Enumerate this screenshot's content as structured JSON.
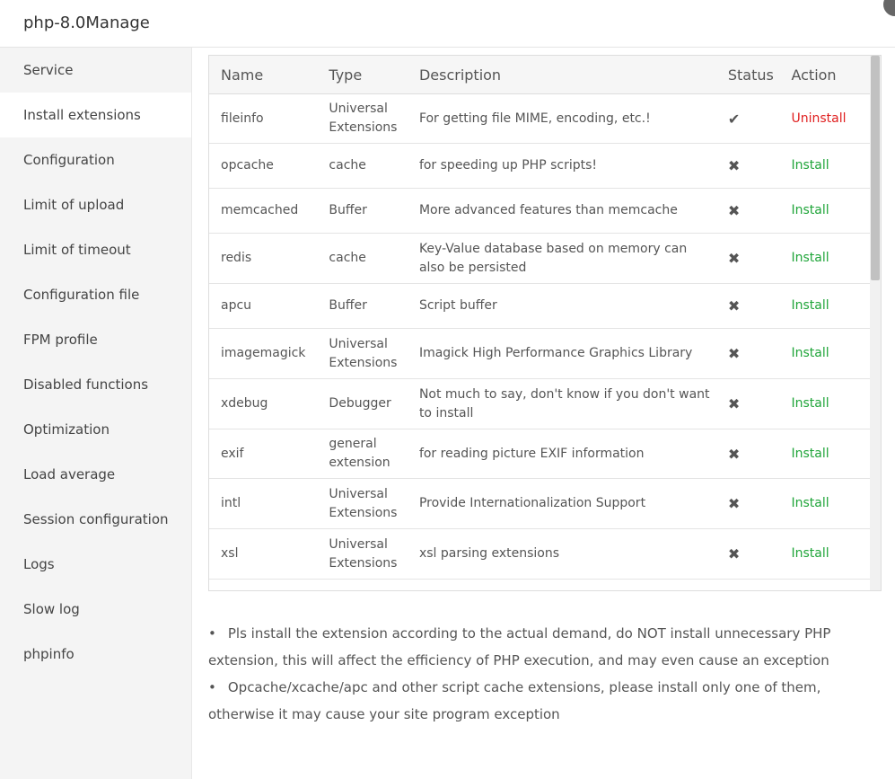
{
  "header": {
    "title": "php-8.0Manage"
  },
  "sidebar": {
    "items": [
      "Service",
      "Install extensions",
      "Configuration",
      "Limit of upload",
      "Limit of timeout",
      "Configuration file",
      "FPM profile",
      "Disabled functions",
      "Optimization",
      "Load average",
      "Session configuration",
      "Logs",
      "Slow log",
      "phpinfo"
    ],
    "selected": 1
  },
  "table": {
    "columns": [
      "Name",
      "Type",
      "Description",
      "Status",
      "Action"
    ],
    "rows": [
      [
        "fileinfo",
        "Universal Extensions",
        "For getting file MIME, encoding, etc.!",
        "✔",
        "Uninstall"
      ],
      [
        "opcache",
        "cache",
        "for speeding up PHP scripts!",
        "✖",
        "Install"
      ],
      [
        "memcached",
        "Buffer",
        "More advanced features than memcache",
        "✖",
        "Install"
      ],
      [
        "redis",
        "cache",
        "Key-Value database based on memory can also be persisted",
        "✖",
        "Install"
      ],
      [
        "apcu",
        "Buffer",
        "Script buffer",
        "✖",
        "Install"
      ],
      [
        "imagemagick",
        "Universal Extensions",
        "Imagick High Performance Graphics Library",
        "✖",
        "Install"
      ],
      [
        "xdebug",
        "Debugger",
        "Not much to say, don't know if you don't want to install",
        "✖",
        "Install"
      ],
      [
        "exif",
        "general extension",
        "for reading picture EXIF information",
        "✖",
        "Install"
      ],
      [
        "intl",
        "Universal Extensions",
        "Provide Internationalization Support",
        "✖",
        "Install"
      ],
      [
        "xsl",
        "Universal Extensions",
        "xsl parsing extensions",
        "✖",
        "Install"
      ]
    ]
  },
  "notes": [
    "Pls install the extension according to the actual demand, do NOT install unnecessary PHP extension, this will affect the efficiency of PHP execution, and may even cause an exception",
    "Opcache/xcache/apc and other script cache extensions, please install only one of them, otherwise it may cause your site program exception"
  ]
}
